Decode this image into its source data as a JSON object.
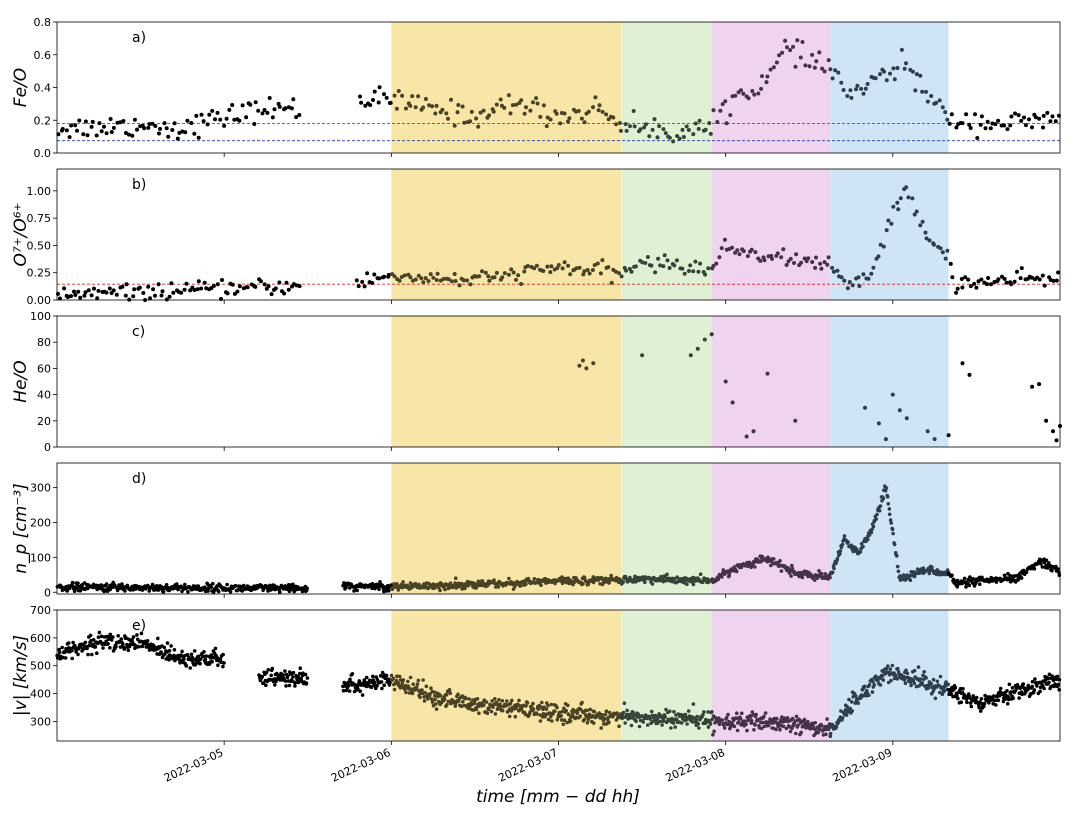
{
  "chart_data": {
    "type": "scatter",
    "xlabel": "time [mm − dd hh]",
    "x_range": [
      "2022-03-04 00:00",
      "2022-03-10 00:00"
    ],
    "x_ticks": [
      "2022-03-05",
      "2022-03-06",
      "2022-03-07",
      "2022-03-08",
      "2022-03-09"
    ],
    "bands": [
      {
        "start": "2022-03-06 00:00",
        "end": "2022-03-07 09:00",
        "color": "#f7e6a8"
      },
      {
        "start": "2022-03-07 09:00",
        "end": "2022-03-07 22:00",
        "color": "#dff0d5"
      },
      {
        "start": "2022-03-07 22:00",
        "end": "2022-03-08 15:00",
        "color": "#efd3ef"
      },
      {
        "start": "2022-03-08 15:00",
        "end": "2022-03-09 08:00",
        "color": "#cfe4f5"
      }
    ],
    "panels": [
      {
        "label": "a)",
        "ylabel": "Fe/O",
        "ylim": [
          0,
          0.8
        ],
        "yticks": [
          "0.0",
          "0.2",
          "0.4",
          "0.6",
          "0.8"
        ],
        "ytick_values": [
          0,
          0.2,
          0.4,
          0.6,
          0.8
        ],
        "ref_lines": [
          {
            "y": 0.18,
            "color": "#d62728"
          },
          {
            "y": 0.075,
            "color": "#1f3fa0"
          }
        ],
        "gaps": [
          [
            "2022-03-05 11:00",
            "2022-03-05 19:00"
          ]
        ],
        "profile": [
          [
            "2022-03-04 00:00",
            0.15
          ],
          [
            "2022-03-04 06:00",
            0.16
          ],
          [
            "2022-03-04 12:00",
            0.17
          ],
          [
            "2022-03-04 18:00",
            0.15
          ],
          [
            "2022-03-05 00:00",
            0.22
          ],
          [
            "2022-03-05 06:00",
            0.27
          ],
          [
            "2022-03-05 11:00",
            0.27
          ],
          [
            "2022-03-05 19:00",
            0.34
          ],
          [
            "2022-03-06 00:00",
            0.32
          ],
          [
            "2022-03-06 06:00",
            0.27
          ],
          [
            "2022-03-06 12:00",
            0.22
          ],
          [
            "2022-03-06 18:00",
            0.31
          ],
          [
            "2022-03-07 00:00",
            0.22
          ],
          [
            "2022-03-07 06:00",
            0.27
          ],
          [
            "2022-03-07 10:00",
            0.16
          ],
          [
            "2022-03-07 16:00",
            0.13
          ],
          [
            "2022-03-07 22:00",
            0.15
          ],
          [
            "2022-03-08 00:00",
            0.3
          ],
          [
            "2022-03-08 06:00",
            0.45
          ],
          [
            "2022-03-08 09:00",
            0.65
          ],
          [
            "2022-03-08 12:00",
            0.55
          ],
          [
            "2022-03-08 15:00",
            0.52
          ],
          [
            "2022-03-08 18:00",
            0.35
          ],
          [
            "2022-03-08 22:00",
            0.45
          ],
          [
            "2022-03-09 02:00",
            0.55
          ],
          [
            "2022-03-09 06:00",
            0.28
          ],
          [
            "2022-03-09 09:00",
            0.2
          ],
          [
            "2022-03-09 18:00",
            0.18
          ],
          [
            "2022-03-10 00:00",
            0.2
          ]
        ],
        "noise": 0.035,
        "n": 370,
        "size": 2.0,
        "style": "dots"
      },
      {
        "label": "b)",
        "ylabel": "O⁷⁺/O⁶⁺",
        "ylim": [
          0,
          1.2
        ],
        "yticks": [
          "0.00",
          "0.25",
          "0.50",
          "0.75",
          "1.00"
        ],
        "ytick_values": [
          0,
          0.25,
          0.5,
          0.75,
          1.0
        ],
        "ref_lines": [
          {
            "y": 0.145,
            "color": "#d62728"
          }
        ],
        "gaps": [
          [
            "2022-03-05 11:00",
            "2022-03-05 19:00"
          ]
        ],
        "profile": [
          [
            "2022-03-04 00:00",
            0.05
          ],
          [
            "2022-03-04 12:00",
            0.07
          ],
          [
            "2022-03-05 00:00",
            0.1
          ],
          [
            "2022-03-05 11:00",
            0.13
          ],
          [
            "2022-03-05 19:00",
            0.16
          ],
          [
            "2022-03-06 00:00",
            0.22
          ],
          [
            "2022-03-06 12:00",
            0.18
          ],
          [
            "2022-03-07 00:00",
            0.3
          ],
          [
            "2022-03-07 09:00",
            0.24
          ],
          [
            "2022-03-07 12:00",
            0.35
          ],
          [
            "2022-03-07 22:00",
            0.28
          ],
          [
            "2022-03-08 00:00",
            0.48
          ],
          [
            "2022-03-08 08:00",
            0.38
          ],
          [
            "2022-03-08 15:00",
            0.33
          ],
          [
            "2022-03-08 17:00",
            0.12
          ],
          [
            "2022-03-08 21:00",
            0.25
          ],
          [
            "2022-03-09 00:00",
            0.8
          ],
          [
            "2022-03-09 02:00",
            1.0
          ],
          [
            "2022-03-09 05:00",
            0.55
          ],
          [
            "2022-03-09 08:00",
            0.4
          ],
          [
            "2022-03-09 09:00",
            0.15
          ],
          [
            "2022-03-10 00:00",
            0.2
          ]
        ],
        "noise": 0.035,
        "n": 390,
        "size": 2.0,
        "style": "dots"
      },
      {
        "label": "c)",
        "ylabel": "He/O",
        "ylim": [
          0,
          100
        ],
        "yticks": [
          "0",
          "20",
          "40",
          "60",
          "80",
          "100"
        ],
        "ytick_values": [
          0,
          20,
          40,
          60,
          80,
          100
        ],
        "ref_lines": [],
        "points": [
          [
            "2022-03-07 03:00",
            62
          ],
          [
            "2022-03-07 03:30",
            66
          ],
          [
            "2022-03-07 04:00",
            60
          ],
          [
            "2022-03-07 05:00",
            64
          ],
          [
            "2022-03-07 12:00",
            70
          ],
          [
            "2022-03-07 19:00",
            70
          ],
          [
            "2022-03-07 20:00",
            75
          ],
          [
            "2022-03-07 21:00",
            82
          ],
          [
            "2022-03-07 22:00",
            86
          ],
          [
            "2022-03-08 00:00",
            50
          ],
          [
            "2022-03-08 01:00",
            34
          ],
          [
            "2022-03-08 03:00",
            8
          ],
          [
            "2022-03-08 04:00",
            12
          ],
          [
            "2022-03-08 06:00",
            56
          ],
          [
            "2022-03-08 10:00",
            20
          ],
          [
            "2022-03-08 20:00",
            30
          ],
          [
            "2022-03-08 22:00",
            18
          ],
          [
            "2022-03-08 23:00",
            6
          ],
          [
            "2022-03-09 00:00",
            40
          ],
          [
            "2022-03-09 01:00",
            28
          ],
          [
            "2022-03-09 02:00",
            22
          ],
          [
            "2022-03-09 05:00",
            12
          ],
          [
            "2022-03-09 06:00",
            6
          ],
          [
            "2022-03-09 08:00",
            9
          ],
          [
            "2022-03-09 10:00",
            64
          ],
          [
            "2022-03-09 11:00",
            55
          ],
          [
            "2022-03-09 20:00",
            46
          ],
          [
            "2022-03-09 21:00",
            48
          ],
          [
            "2022-03-09 22:00",
            20
          ],
          [
            "2022-03-09 23:00",
            12
          ],
          [
            "2022-03-09 23:30",
            5
          ],
          [
            "2022-03-10 00:00",
            16
          ]
        ],
        "size": 2.0,
        "style": "dots"
      },
      {
        "label": "d)",
        "ylabel": "n_p [cm⁻³]",
        "ylim": [
          -5,
          370
        ],
        "yticks": [
          "0",
          "100",
          "200",
          "300"
        ],
        "ytick_values": [
          0,
          100,
          200,
          300
        ],
        "ref_lines": [],
        "gaps": [
          [
            "2022-03-05 12:00",
            "2022-03-05 17:00"
          ]
        ],
        "profile": [
          [
            "2022-03-04 00:00",
            15
          ],
          [
            "2022-03-05 00:00",
            12
          ],
          [
            "2022-03-05 12:00",
            10
          ],
          [
            "2022-03-05 17:00",
            18
          ],
          [
            "2022-03-06 00:00",
            16
          ],
          [
            "2022-03-06 12:00",
            22
          ],
          [
            "2022-03-07 00:00",
            32
          ],
          [
            "2022-03-07 09:00",
            36
          ],
          [
            "2022-03-07 12:00",
            38
          ],
          [
            "2022-03-07 22:00",
            32
          ],
          [
            "2022-03-08 02:00",
            75
          ],
          [
            "2022-03-08 06:00",
            95
          ],
          [
            "2022-03-08 10:00",
            55
          ],
          [
            "2022-03-08 15:00",
            40
          ],
          [
            "2022-03-08 17:00",
            150
          ],
          [
            "2022-03-08 19:00",
            110
          ],
          [
            "2022-03-08 21:00",
            180
          ],
          [
            "2022-03-08 23:00",
            300
          ],
          [
            "2022-03-09 01:00",
            40
          ],
          [
            "2022-03-09 05:00",
            65
          ],
          [
            "2022-03-09 08:00",
            55
          ],
          [
            "2022-03-09 09:00",
            25
          ],
          [
            "2022-03-09 18:00",
            40
          ],
          [
            "2022-03-09 21:00",
            90
          ],
          [
            "2022-03-10 00:00",
            62
          ]
        ],
        "noise": 8,
        "n": 1400,
        "size": 1.8,
        "style": "dense"
      },
      {
        "label": "e)",
        "ylabel": "|v| [km/s]",
        "ylim": [
          230,
          700
        ],
        "yticks": [
          "300",
          "400",
          "500",
          "600",
          "700"
        ],
        "ytick_values": [
          300,
          400,
          500,
          600,
          700
        ],
        "ref_lines": [],
        "gaps": [
          [
            "2022-03-05 00:00",
            "2022-03-05 05:00"
          ],
          [
            "2022-03-05 12:00",
            "2022-03-05 17:00"
          ]
        ],
        "profile": [
          [
            "2022-03-04 00:00",
            540
          ],
          [
            "2022-03-04 06:00",
            585
          ],
          [
            "2022-03-04 12:00",
            580
          ],
          [
            "2022-03-04 18:00",
            530
          ],
          [
            "2022-03-05 00:00",
            520
          ],
          [
            "2022-03-05 05:00",
            460
          ],
          [
            "2022-03-05 12:00",
            450
          ],
          [
            "2022-03-05 17:00",
            430
          ],
          [
            "2022-03-06 00:00",
            445
          ],
          [
            "2022-03-06 06:00",
            390
          ],
          [
            "2022-03-06 12:00",
            360
          ],
          [
            "2022-03-07 00:00",
            330
          ],
          [
            "2022-03-07 09:00",
            315
          ],
          [
            "2022-03-07 22:00",
            305
          ],
          [
            "2022-03-08 12:00",
            285
          ],
          [
            "2022-03-08 15:00",
            270
          ],
          [
            "2022-03-08 18:00",
            360
          ],
          [
            "2022-03-08 23:00",
            480
          ],
          [
            "2022-03-09 08:00",
            415
          ],
          [
            "2022-03-09 12:00",
            370
          ],
          [
            "2022-03-09 18:00",
            410
          ],
          [
            "2022-03-10 00:00",
            450
          ]
        ],
        "noise": 22,
        "n": 1600,
        "size": 1.8,
        "style": "dense"
      }
    ]
  }
}
